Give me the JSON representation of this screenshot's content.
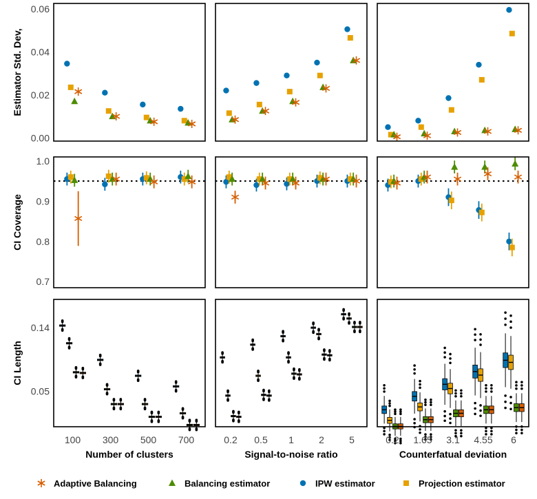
{
  "colors": {
    "adaptive": "#d55e00",
    "balancing": "#4d8c00",
    "ipw": "#0072b2",
    "projection": "#e6a100"
  },
  "legend": [
    {
      "key": "adaptive",
      "label": "Adaptive Balancing",
      "shape": "star"
    },
    {
      "key": "balancing",
      "label": "Balancing estimator",
      "shape": "triangle"
    },
    {
      "key": "ipw",
      "label": "IPW estimator",
      "shape": "circle"
    },
    {
      "key": "projection",
      "label": "Projection estimator",
      "shape": "square"
    }
  ],
  "chart_data": {
    "type": "faceted-scatter-boxplot",
    "row_labels": [
      "Estimator Std. Dev,",
      "CI Coverage",
      "CI Length"
    ],
    "columns": [
      {
        "xlabel": "Number of clusters",
        "categories": [
          "100",
          "300",
          "500",
          "700"
        ]
      },
      {
        "xlabel": "Signal-to-noise ratio",
        "categories": [
          "0.2",
          "0.5",
          "1",
          "2",
          "5"
        ]
      },
      {
        "xlabel": "Counterfatual deviation",
        "categories": [
          "0.2",
          "1.65",
          "3.1",
          "4.55",
          "6"
        ]
      }
    ],
    "rows": {
      "sd": {
        "ylim": [
          -0.0015,
          0.0625
        ],
        "yticks": [
          0.0,
          0.02,
          0.04,
          0.06
        ],
        "ytick_labels": [
          "0.00",
          "0.02",
          "0.04",
          "0.06"
        ],
        "panels": [
          {
            "ipw": [
              0.0345,
              0.021,
              0.0155,
              0.0135
            ],
            "projection": [
              0.0235,
              0.0125,
              0.0095,
              0.008
            ],
            "balancing": [
              0.017,
              0.01,
              0.008,
              0.007
            ],
            "adaptive": [
              0.0215,
              0.01,
              0.0075,
              0.0065
            ]
          },
          {
            "ipw": [
              0.022,
              0.0255,
              0.029,
              0.035,
              0.0505
            ],
            "projection": [
              0.0115,
              0.0155,
              0.0215,
              0.029,
              0.0465
            ],
            "balancing": [
              0.0085,
              0.0125,
              0.017,
              0.0235,
              0.036
            ],
            "adaptive": [
              0.0085,
              0.0125,
              0.0165,
              0.023,
              0.036
            ]
          },
          {
            "ipw": [
              0.005,
              0.008,
              0.0185,
              0.034,
              0.0595
            ],
            "projection": [
              0.0015,
              0.005,
              0.013,
              0.027,
              0.0485
            ],
            "balancing": [
              0.0015,
              0.002,
              0.003,
              0.0035,
              0.004
            ],
            "adaptive": [
              0.0005,
              0.001,
              0.0025,
              0.003,
              0.0035
            ]
          }
        ]
      },
      "coverage": {
        "ylim": [
          0.685,
          1.01
        ],
        "yticks": [
          0.7,
          0.8,
          0.9,
          1.0
        ],
        "ytick_labels": [
          "0.7",
          "0.8",
          "0.9",
          "1.0"
        ],
        "reference_line": 0.95,
        "panels": [
          {
            "ipw": [
              0.955,
              0.942,
              0.955,
              0.96
            ],
            "projection": [
              0.96,
              0.962,
              0.958,
              0.955
            ],
            "balancing": [
              0.952,
              0.955,
              0.955,
              0.962
            ],
            "adaptive": [
              0.857,
              0.955,
              0.948,
              0.948
            ]
          },
          {
            "ipw": [
              0.948,
              0.94,
              0.943,
              0.95,
              0.95
            ],
            "projection": [
              0.96,
              0.955,
              0.955,
              0.958,
              0.955
            ],
            "balancing": [
              0.955,
              0.955,
              0.955,
              0.955,
              0.955
            ],
            "adaptive": [
              0.91,
              0.945,
              0.945,
              0.955,
              0.95
            ]
          },
          {
            "ipw": [
              0.94,
              0.95,
              0.91,
              0.878,
              0.8
            ],
            "projection": [
              0.948,
              0.955,
              0.902,
              0.872,
              0.785
            ],
            "balancing": [
              0.95,
              0.96,
              0.985,
              0.985,
              0.993
            ],
            "adaptive": [
              0.945,
              0.96,
              0.955,
              0.968,
              0.96
            ]
          }
        ]
      },
      "length": {
        "ylim": [
          0.0,
          0.18
        ],
        "yticks": [
          0.05,
          0.14
        ],
        "ytick_labels": [
          "0.05",
          "0.14"
        ],
        "panels": [
          {
            "ipw": [
              0.143,
              0.0945,
              0.072,
              0.057
            ],
            "projection": [
              0.118,
              0.053,
              0.032,
              0.019
            ],
            "balancing": [
              0.077,
              0.032,
              0.014,
              0.0025
            ],
            "adaptive": [
              0.076,
              0.032,
              0.014,
              0.0025
            ]
          },
          {
            "ipw": [
              0.098,
              0.116,
              0.128,
              0.14,
              0.159
            ],
            "projection": [
              0.044,
              0.072,
              0.098,
              0.131,
              0.153
            ],
            "balancing": [
              0.015,
              0.045,
              0.075,
              0.102,
              0.141
            ],
            "adaptive": [
              0.014,
              0.044,
              0.074,
              0.101,
              0.141
            ]
          },
          {
            "ipw": [
              0.024,
              0.043,
              0.06,
              0.078,
              0.094
            ],
            "projection": [
              0.009,
              0.028,
              0.054,
              0.073,
              0.091
            ],
            "balancing": [
              0.0005,
              0.01,
              0.019,
              0.024,
              0.027
            ],
            "adaptive": [
              0.0005,
              0.01,
              0.019,
              0.024,
              0.027
            ]
          }
        ]
      }
    }
  }
}
